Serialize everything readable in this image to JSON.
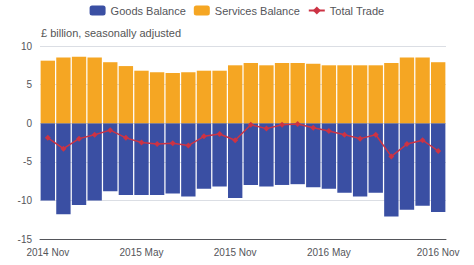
{
  "chart_data": {
    "type": "bar",
    "title": "£ billion, seasonally adjusted",
    "categories": [
      "2014 Nov",
      null,
      null,
      null,
      null,
      null,
      "2015 May",
      null,
      null,
      null,
      null,
      null,
      "2015 Nov",
      null,
      null,
      null,
      null,
      null,
      "2016 May",
      null,
      null,
      null,
      null,
      null,
      null,
      "2016 Nov"
    ],
    "series": [
      {
        "name": "Goods Balance",
        "type": "bar",
        "color": "#3a4fa3",
        "values": [
          -10.0,
          -11.8,
          -10.6,
          -10.0,
          -8.8,
          -9.3,
          -9.3,
          -9.3,
          -9.1,
          -9.5,
          -8.5,
          -8.2,
          -9.7,
          -8.0,
          -8.2,
          -8.0,
          -7.9,
          -8.3,
          -8.5,
          -9.0,
          -9.5,
          -9.0,
          -12.1,
          -11.2,
          -10.7,
          -11.5
        ]
      },
      {
        "name": "Services Balance",
        "type": "bar",
        "color": "#f5a623",
        "values": [
          8.1,
          8.5,
          8.6,
          8.5,
          7.9,
          7.4,
          6.8,
          6.6,
          6.5,
          6.6,
          6.8,
          6.8,
          7.5,
          7.8,
          7.5,
          7.8,
          7.8,
          7.7,
          7.5,
          7.5,
          7.5,
          7.5,
          7.8,
          8.5,
          8.5,
          7.9
        ]
      },
      {
        "name": "Total Trade",
        "type": "line",
        "color": "#cc3344",
        "marker": "diamond",
        "line_style": "solid",
        "values": [
          -1.9,
          -3.3,
          -2.0,
          -1.5,
          -0.9,
          -1.9,
          -2.5,
          -2.7,
          -2.6,
          -2.9,
          -1.7,
          -1.4,
          -2.2,
          -0.2,
          -0.7,
          -0.2,
          -0.1,
          -0.6,
          -1.0,
          -1.5,
          -2.0,
          -1.5,
          -4.3,
          -2.7,
          -2.2,
          -3.6
        ]
      }
    ],
    "ylim": [
      -15,
      10
    ],
    "yticks": [
      -15,
      -10,
      -5,
      0,
      5,
      10
    ],
    "grid": true,
    "legend": "top"
  }
}
